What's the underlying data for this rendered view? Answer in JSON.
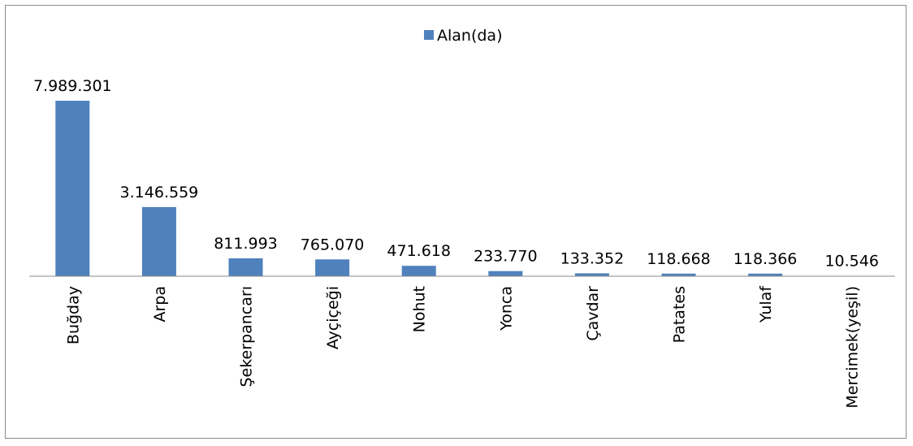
{
  "chart_data": {
    "type": "bar",
    "categories": [
      "Buğday",
      "Arpa",
      "Şekerpancarı",
      "Ayçiçeği",
      "Nohut",
      "Yonca",
      "Çavdar",
      "Patates",
      "Yulaf",
      "Mercimek(yeşil)"
    ],
    "series": [
      {
        "name": "Alan(da)",
        "color": "#4f81bd",
        "values": [
          7989301,
          3146559,
          811993,
          765070,
          471618,
          233770,
          133352,
          118668,
          118366,
          10546
        ]
      }
    ],
    "data_labels": [
      "7.989.301",
      "3.146.559",
      "811.993",
      "765.070",
      "471.618",
      "233.770",
      "133.352",
      "118.668",
      "118.366",
      "10.546"
    ],
    "legend_placement": "top-center",
    "grid": false,
    "ylim": [
      0,
      8000000
    ]
  }
}
